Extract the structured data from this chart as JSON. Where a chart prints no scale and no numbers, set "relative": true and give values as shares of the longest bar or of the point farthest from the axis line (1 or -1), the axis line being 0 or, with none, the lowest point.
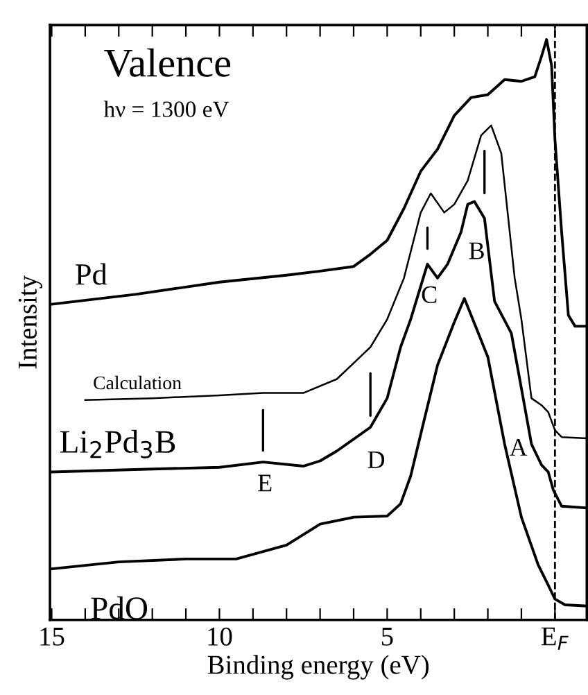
{
  "chart_data": {
    "type": "line",
    "relative": true,
    "xlabel": "Binding energy (eV)",
    "ylabel": "Intensity",
    "xlim": [
      15.05,
      -0.95
    ],
    "xticks": [
      15,
      {
        "value": 14,
        "label": null
      },
      {
        "value": 13,
        "label": null
      },
      {
        "value": 12,
        "label": null
      },
      {
        "value": 11,
        "label": null
      },
      10,
      {
        "value": 9,
        "label": null
      },
      {
        "value": 8,
        "label": null
      },
      {
        "value": 7,
        "label": null
      },
      {
        "value": 6,
        "label": null
      },
      5,
      {
        "value": 4,
        "label": null
      },
      {
        "value": 3,
        "label": null
      },
      {
        "value": 2,
        "label": null
      },
      {
        "value": 1,
        "label": null
      },
      {
        "value": 0,
        "label": "E$_{F}$"
      }
    ],
    "tick_labels": "x",
    "grid": false,
    "legend": false,
    "marker": "none",
    "series": [
      {
        "name": "Pd",
        "color": "#000000",
        "x": [
          15,
          12.5,
          10,
          8,
          7,
          6,
          5.5,
          5,
          4.5,
          4,
          3.5,
          3,
          2.5,
          2,
          1.5,
          1,
          0.6,
          0.4,
          0.25,
          0.1,
          0,
          -0.2,
          -0.4,
          -0.6,
          -0.95
        ],
        "values": [
          0.544,
          0.561,
          0.582,
          0.594,
          0.601,
          0.609,
          0.63,
          0.654,
          0.709,
          0.773,
          0.811,
          0.869,
          0.9,
          0.905,
          0.931,
          0.928,
          0.936,
          0.971,
          1.0,
          0.955,
          0.828,
          0.668,
          0.525,
          0.506,
          0.506
        ]
      },
      {
        "name": "Calculation",
        "color": "#000000",
        "x": [
          14,
          12,
          10,
          8.7,
          7.5,
          6.5,
          5.5,
          5,
          4.5,
          4,
          3.7,
          3.3,
          3,
          2.6,
          2.2,
          1.9,
          1.6,
          1.2,
          1.0,
          0.7,
          0.4,
          0.2,
          0,
          -0.2,
          -0.95
        ],
        "values": [
          0.379,
          0.382,
          0.387,
          0.391,
          0.391,
          0.415,
          0.47,
          0.518,
          0.589,
          0.702,
          0.735,
          0.702,
          0.716,
          0.757,
          0.835,
          0.852,
          0.804,
          0.589,
          0.518,
          0.382,
          0.37,
          0.358,
          0.327,
          0.315,
          0.313
        ]
      },
      {
        "name": "Li$_{2}$Pd$_{3}$B",
        "color": "#000000",
        "x": [
          15,
          12,
          10,
          8.7,
          7.5,
          7,
          6.5,
          5.5,
          5,
          4.6,
          4.3,
          3.8,
          3.5,
          3.2,
          2.8,
          2.6,
          2.4,
          2.1,
          1.8,
          1.3,
          1.0,
          0.7,
          0.4,
          0.2,
          0.05,
          -0.2,
          -0.95
        ],
        "values": [
          0.255,
          0.26,
          0.263,
          0.272,
          0.265,
          0.274,
          0.291,
          0.332,
          0.382,
          0.47,
          0.518,
          0.613,
          0.589,
          0.613,
          0.668,
          0.716,
          0.721,
          0.692,
          0.549,
          0.494,
          0.399,
          0.303,
          0.267,
          0.255,
          0.224,
          0.196,
          0.193
        ]
      },
      {
        "name": "PdO",
        "color": "#000000",
        "x": [
          15,
          13,
          11,
          9.5,
          8,
          7,
          6,
          5,
          4.6,
          4.3,
          4,
          3.5,
          3,
          2.7,
          2.4,
          2.0,
          1.5,
          1.0,
          0.5,
          0.2,
          0,
          -0.3,
          -0.95
        ],
        "values": [
          0.088,
          0.1,
          0.105,
          0.105,
          0.129,
          0.165,
          0.177,
          0.179,
          0.2,
          0.248,
          0.32,
          0.439,
          0.513,
          0.554,
          0.511,
          0.453,
          0.303,
          0.177,
          0.095,
          0.06,
          0.036,
          0.026,
          0.024
        ]
      }
    ],
    "ref_lines": [
      {
        "axis": "x",
        "value": 0,
        "line_style": "dashed",
        "color": "#000000"
      }
    ],
    "annotations": [
      "Valence",
      "hν = 1300 eV",
      {
        "text": "A",
        "x": 0.4,
        "y": 0.267
      },
      {
        "text": "B",
        "x": 2.1,
        "y": 0.692
      },
      {
        "text": "C",
        "x": 3.8,
        "y": 0.613
      },
      {
        "text": "D",
        "x": 5.5,
        "y": 0.332
      },
      {
        "text": "E",
        "x": 8.7,
        "y": 0.272
      }
    ]
  }
}
